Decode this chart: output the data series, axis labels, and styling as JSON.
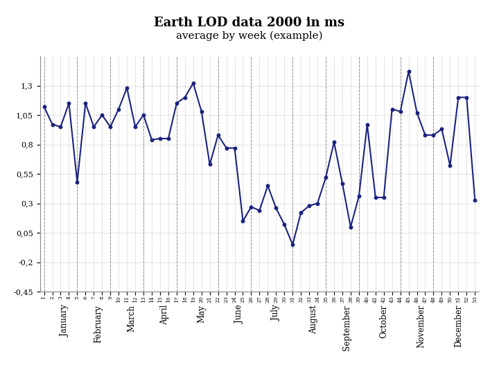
{
  "title": "Earth LOD data 2000 in ms",
  "subtitle": "average by week (example)",
  "line_color": "#1a237e",
  "background_color": "#ffffff",
  "plot_bg_color": "#ffffff",
  "ylim": [
    -0.45,
    1.55
  ],
  "yticks": [
    -0.45,
    -0.2,
    0.05,
    0.3,
    0.55,
    0.8,
    1.05,
    1.3
  ],
  "ytick_labels": [
    "-0,45",
    "-0,2",
    "0,05",
    "0,3",
    "0,55",
    "0,8",
    "1,05",
    "1,3"
  ],
  "weeks": [
    1,
    2,
    3,
    4,
    5,
    6,
    7,
    8,
    9,
    10,
    11,
    12,
    13,
    14,
    15,
    16,
    17,
    18,
    19,
    20,
    21,
    22,
    23,
    24,
    25,
    26,
    27,
    28,
    29,
    30,
    31,
    32,
    33,
    34,
    35,
    36,
    37,
    38,
    39,
    40,
    41,
    42,
    43,
    44,
    45,
    46,
    47,
    48,
    49,
    50,
    51,
    52,
    53
  ],
  "values": [
    1.12,
    0.97,
    0.95,
    1.15,
    0.48,
    1.15,
    0.95,
    1.05,
    0.95,
    1.1,
    1.28,
    0.95,
    1.05,
    0.84,
    0.85,
    0.85,
    1.15,
    1.2,
    1.32,
    1.08,
    0.63,
    0.88,
    0.77,
    0.77,
    0.15,
    0.27,
    0.24,
    0.45,
    0.26,
    0.12,
    -0.05,
    0.22,
    0.28,
    0.3,
    0.52,
    0.82,
    0.47,
    0.1,
    0.36,
    0.97,
    0.35,
    0.35,
    1.1,
    1.08,
    1.42,
    1.07,
    0.88,
    0.88,
    0.93,
    0.62,
    1.2,
    1.2,
    0.33
  ],
  "month_labels": [
    "January",
    "February",
    "March",
    "April",
    "May",
    "June",
    "July",
    "August",
    "September",
    "October",
    "November",
    "December"
  ],
  "month_start_weeks": [
    1,
    5,
    9,
    13,
    17,
    22,
    26,
    31,
    35,
    39,
    44,
    48
  ],
  "month_mid_weeks": [
    3,
    7,
    11,
    15,
    19.5,
    24,
    28.5,
    33,
    37,
    41.5,
    46,
    50.5
  ]
}
